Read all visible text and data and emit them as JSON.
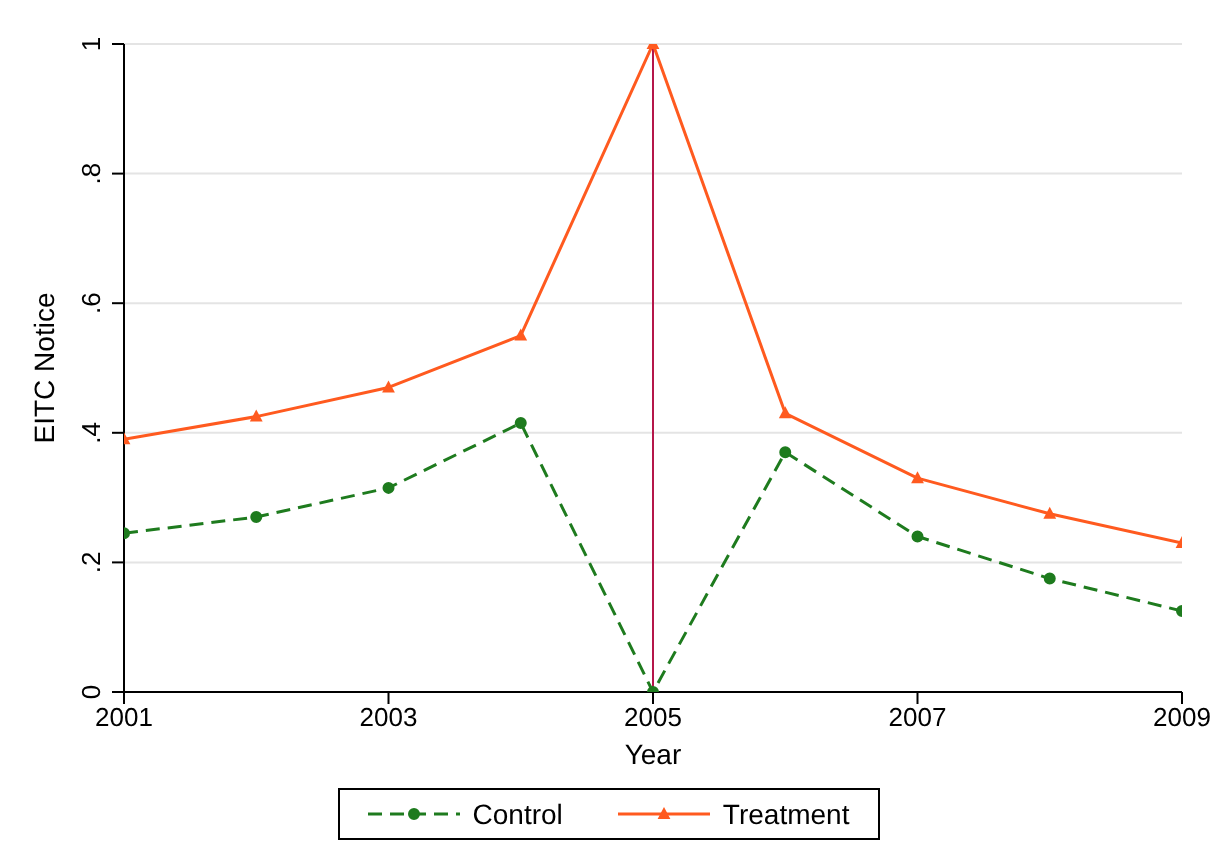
{
  "chart_data": {
    "type": "line",
    "xlabel": "Year",
    "ylabel": "EITC Notice",
    "x": [
      2001,
      2002,
      2003,
      2004,
      2005,
      2006,
      2007,
      2008,
      2009
    ],
    "series": [
      {
        "name": "Control",
        "color": "#1e7b1e",
        "marker": "circle",
        "line_style": "dashed",
        "values": [
          0.245,
          0.27,
          0.315,
          0.415,
          0,
          0.37,
          0.24,
          0.175,
          0.125
        ]
      },
      {
        "name": "Treatment",
        "color": "#ff5a1f",
        "marker": "triangle",
        "line_style": "solid",
        "values": [
          0.39,
          0.425,
          0.47,
          0.55,
          1,
          0.43,
          0.33,
          0.275,
          0.23
        ]
      }
    ],
    "xlim": [
      2001,
      2009
    ],
    "xticks": [
      2001,
      2003,
      2005,
      2007,
      2009
    ],
    "ylim": [
      0,
      1
    ],
    "yticks": [
      0,
      {
        "value": 0.2,
        "label": ".2"
      },
      {
        "value": 0.4,
        "label": ".4"
      },
      {
        "value": 0.6,
        "label": ".6"
      },
      {
        "value": 0.8,
        "label": ".8"
      },
      1
    ],
    "ref_lines": [
      {
        "axis": "x",
        "value": 2005,
        "color": "#b5164a"
      }
    ],
    "grid": "y",
    "legend": "bottom"
  }
}
